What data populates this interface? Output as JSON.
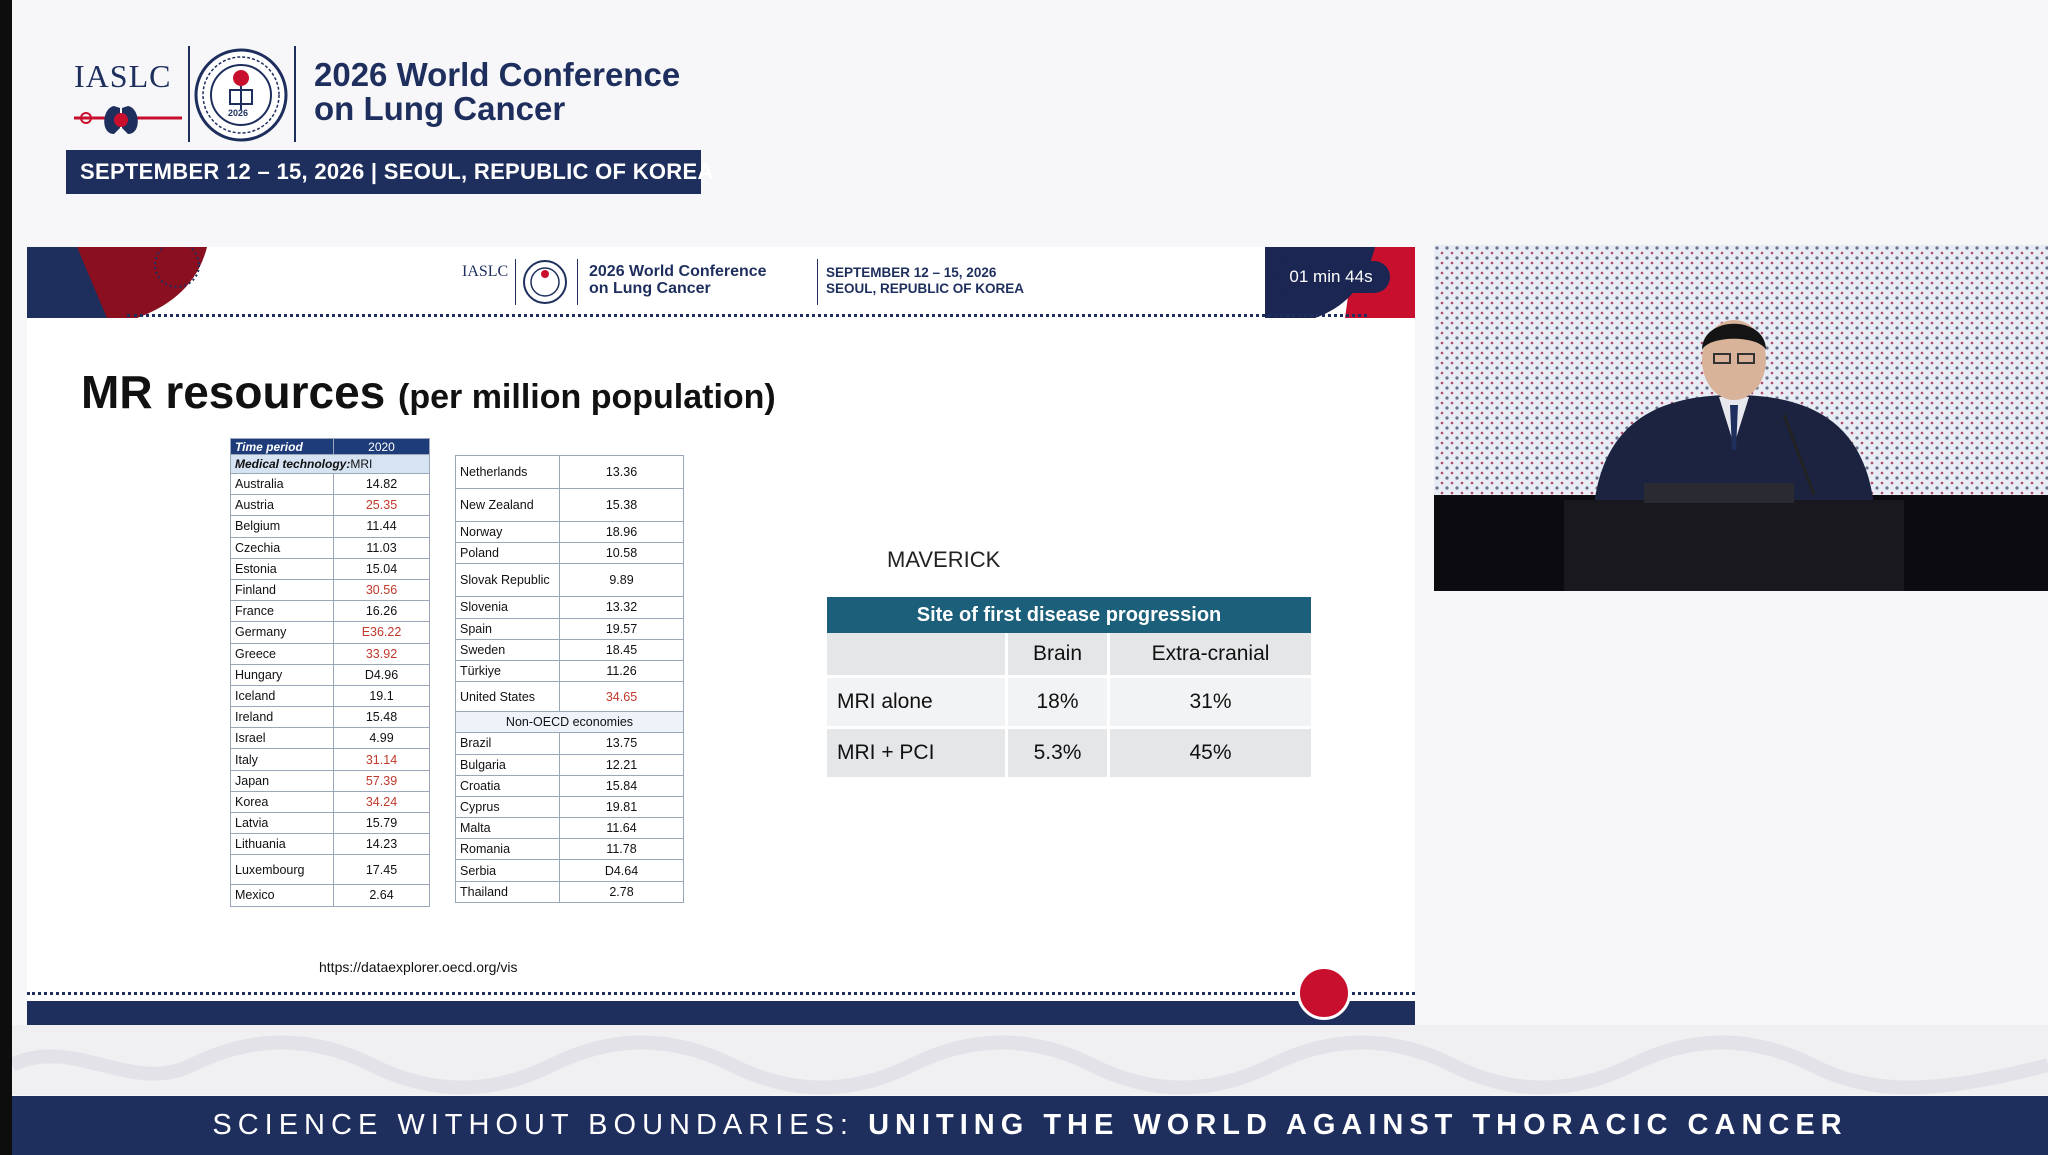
{
  "conference": {
    "org": "IASLC",
    "seal_year": "2026",
    "title_line1": "2026 World Conference",
    "title_line2": "on Lung Cancer",
    "dates_location": "SEPTEMBER 12 – 15, 2026  |  SEOUL, REPUBLIC OF KOREA"
  },
  "slide": {
    "mini_header": {
      "org": "IASLC",
      "title_line1": "2026 World Conference",
      "title_line2": "on Lung Cancer",
      "dates": "SEPTEMBER 12 – 15, 2026",
      "location": "SEOUL, REPUBLIC OF KOREA"
    },
    "timer": "01 min 44s",
    "title": "MR resources",
    "title_sub": "(per million population)",
    "oecd_table": {
      "time_period_label": "Time period",
      "year": "2020",
      "medical_technology_label": "Medical technology:",
      "medical_technology_value": "MRI",
      "left_rows": [
        {
          "country": "Australia",
          "value": "14.82",
          "highlight": false
        },
        {
          "country": "Austria",
          "value": "25.35",
          "highlight": true
        },
        {
          "country": "Belgium",
          "value": "11.44",
          "highlight": false
        },
        {
          "country": "Czechia",
          "value": "11.03",
          "highlight": false
        },
        {
          "country": "Estonia",
          "value": "15.04",
          "highlight": false
        },
        {
          "country": "Finland",
          "value": "30.56",
          "highlight": true
        },
        {
          "country": "France",
          "value": "16.26",
          "highlight": false
        },
        {
          "country": "Germany",
          "value": "E36.22",
          "highlight": true
        },
        {
          "country": "Greece",
          "value": "33.92",
          "highlight": true
        },
        {
          "country": "Hungary",
          "value": "D4.96",
          "highlight": false
        },
        {
          "country": "Iceland",
          "value": "19.1",
          "highlight": false
        },
        {
          "country": "Ireland",
          "value": "15.48",
          "highlight": false
        },
        {
          "country": "Israel",
          "value": "4.99",
          "highlight": false
        },
        {
          "country": "Italy",
          "value": "31.14",
          "highlight": true
        },
        {
          "country": "Japan",
          "value": "57.39",
          "highlight": true
        },
        {
          "country": "Korea",
          "value": "34.24",
          "highlight": true
        },
        {
          "country": "Latvia",
          "value": "15.79",
          "highlight": false
        },
        {
          "country": "Lithuania",
          "value": "14.23",
          "highlight": false
        },
        {
          "country": "Luxembourg",
          "value": "17.45",
          "highlight": false
        },
        {
          "country": "Mexico",
          "value": "2.64",
          "highlight": false
        }
      ],
      "right_rows": [
        {
          "country": "Netherlands",
          "value": "13.36",
          "highlight": false
        },
        {
          "country": "New Zealand",
          "value": "15.38",
          "highlight": false
        },
        {
          "country": "Norway",
          "value": "18.96",
          "highlight": false
        },
        {
          "country": "Poland",
          "value": "10.58",
          "highlight": false
        },
        {
          "country": "Slovak Republic",
          "value": "9.89",
          "highlight": false
        },
        {
          "country": "Slovenia",
          "value": "13.32",
          "highlight": false
        },
        {
          "country": "Spain",
          "value": "19.57",
          "highlight": false
        },
        {
          "country": "Sweden",
          "value": "18.45",
          "highlight": false
        },
        {
          "country": "Türkiye",
          "value": "11.26",
          "highlight": false
        },
        {
          "country": "United States",
          "value": "34.65",
          "highlight": true
        }
      ],
      "non_oecd_label": "Non-OECD economies",
      "non_oecd_rows": [
        {
          "country": "Brazil",
          "value": "13.75",
          "highlight": false
        },
        {
          "country": "Bulgaria",
          "value": "12.21",
          "highlight": false
        },
        {
          "country": "Croatia",
          "value": "15.84",
          "highlight": false
        },
        {
          "country": "Cyprus",
          "value": "19.81",
          "highlight": false
        },
        {
          "country": "Malta",
          "value": "11.64",
          "highlight": false
        },
        {
          "country": "Romania",
          "value": "11.78",
          "highlight": false
        },
        {
          "country": "Serbia",
          "value": "D4.64",
          "highlight": false
        },
        {
          "country": "Thailand",
          "value": "2.78",
          "highlight": false
        }
      ]
    },
    "source": "https://dataexplorer.oecd.org/vis",
    "maverick": {
      "label": "MAVERICK",
      "table_title": "Site of first disease progression",
      "columns": [
        "",
        "Brain",
        "Extra-cranial"
      ],
      "rows": [
        {
          "label": "MRI alone",
          "brain": "18%",
          "extra": "31%"
        },
        {
          "label": "MRI + PCI",
          "brain": "5.3%",
          "extra": "45%"
        }
      ]
    }
  },
  "footer": {
    "part1": "SCIENCE WITHOUT BOUNDARIES:",
    "part2": "UNITING THE WORLD AGAINST THORACIC CANCER"
  },
  "colors": {
    "navy": "#1e2f5e",
    "teal_header": "#1b5f7a",
    "record_red": "#c8102e",
    "highlight_red": "#c0392b"
  }
}
